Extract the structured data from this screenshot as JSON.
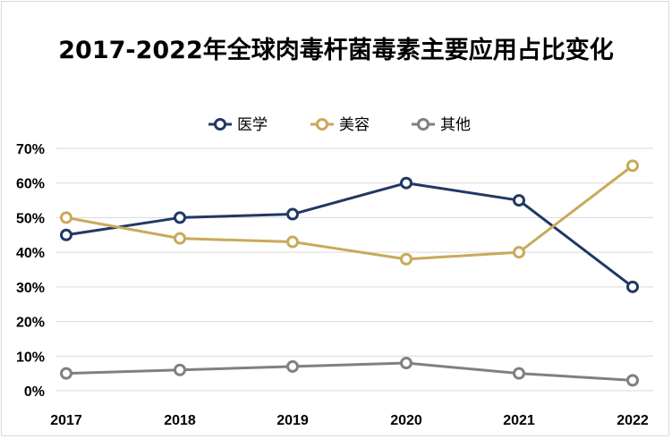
{
  "chart_data": {
    "type": "line",
    "title": "2017-2022年全球肉毒杆菌毒素主要应用占比变化",
    "xlabel": "",
    "ylabel": "",
    "categories": [
      "2017",
      "2018",
      "2019",
      "2020",
      "2021",
      "2022"
    ],
    "y_ticks": [
      "0%",
      "10%",
      "20%",
      "30%",
      "40%",
      "50%",
      "60%",
      "70%"
    ],
    "ylim": [
      0,
      70
    ],
    "grid": true,
    "legend_position": "top",
    "series": [
      {
        "name": "医学",
        "color": "#203864",
        "values": [
          45,
          50,
          51,
          60,
          55,
          30
        ]
      },
      {
        "name": "美容",
        "color": "#C9A95A",
        "values": [
          50,
          44,
          43,
          38,
          40,
          65
        ]
      },
      {
        "name": "其他",
        "color": "#808080",
        "values": [
          5,
          6,
          7,
          8,
          5,
          3
        ]
      }
    ]
  }
}
